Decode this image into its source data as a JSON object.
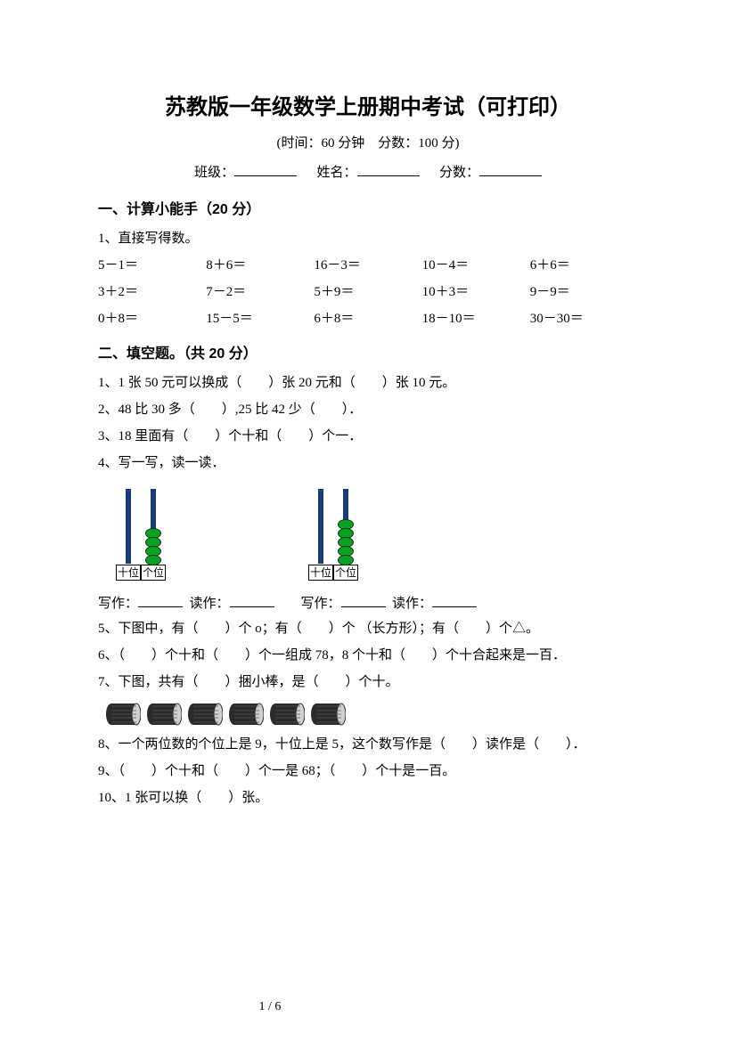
{
  "title": "苏教版一年级数学上册期中考试（可打印）",
  "subtitle": "(时间：60 分钟　分数：100 分)",
  "info_labels": {
    "class": "班级：",
    "name": "姓名：",
    "score": "分数："
  },
  "section1": {
    "head": "一、计算小能手（20 分）",
    "q1_label": "1、直接写得数。",
    "rows": [
      [
        "5－1＝",
        "8＋6＝",
        "16－3＝",
        "10－4＝",
        "6＋6＝"
      ],
      [
        "3＋2＝",
        "7－2＝",
        "5＋9＝",
        "10＋3＝",
        "9－9＝"
      ],
      [
        "0＋8＝",
        "15－5＝",
        "6＋8＝",
        "18－10＝",
        "30－30＝"
      ]
    ]
  },
  "section2": {
    "head": "二、填空题。（共 20 分）",
    "q1": "1、1 张 50 元可以换成（　　）张 20 元和（　　）张 10 元。",
    "q2": "2、48 比 30 多（　　）,25 比 42 少（　　）．",
    "q3": "3、18 里面有（　　）个十和（　　）个一．",
    "q4": "4、写一写，读一读．",
    "abacus_labels": {
      "tens": "十位",
      "ones": "个位"
    },
    "abacus1": {
      "tens_beads": 0,
      "ones_beads": 4
    },
    "abacus2": {
      "tens_beads": 0,
      "ones_beads": 5
    },
    "write_label": "写作：",
    "read_label": "读作：",
    "q5": "5、下图中，有（　　）个 o；有（　　）个 （长方形）；有（　　）个△。",
    "q6": "6、（　　）个十和（　　）个一组成 78，8 个十和（　　）个十合起来是一百．",
    "q7": "7、下图，共有（　　）捆小棒，是（　　）个十。",
    "bundle_count": 6,
    "q8": "8、一个两位数的个位上是 9，十位上是 5，这个数写作是（　　）读作是（　　）．",
    "q9": "9、（　　）个十和（　　）个一是 68；（　　）个十是一百。",
    "q10": "10、1 张可以换（　　）张。"
  },
  "page_number": "1 / 6",
  "colors": {
    "text": "#000000",
    "bg": "#ffffff",
    "bead_fill": "#0ea024",
    "bead_stroke": "#06400f",
    "rod": "#1a3d7a",
    "bundle_dark": "#2a2a2a",
    "bundle_light": "#d0d0d0"
  }
}
